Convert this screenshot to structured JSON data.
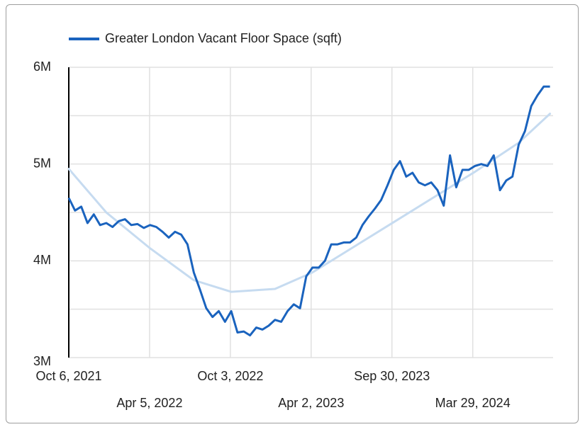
{
  "chart_data": {
    "type": "line",
    "x": [
      "2021-10-06",
      "2021-10-20",
      "2021-11-03",
      "2021-11-17",
      "2021-12-01",
      "2021-12-15",
      "2021-12-29",
      "2022-01-12",
      "2022-01-26",
      "2022-02-09",
      "2022-02-23",
      "2022-03-09",
      "2022-03-23",
      "2022-04-06",
      "2022-04-20",
      "2022-05-04",
      "2022-05-18",
      "2022-06-01",
      "2022-06-15",
      "2022-06-29",
      "2022-07-13",
      "2022-07-27",
      "2022-08-10",
      "2022-08-24",
      "2022-09-07",
      "2022-09-21",
      "2022-10-05",
      "2022-10-19",
      "2022-11-02",
      "2022-11-16",
      "2022-11-30",
      "2022-12-14",
      "2022-12-28",
      "2023-01-11",
      "2023-01-25",
      "2023-02-08",
      "2023-02-22",
      "2023-03-08",
      "2023-03-22",
      "2023-04-05",
      "2023-04-19",
      "2023-05-03",
      "2023-05-17",
      "2023-05-31",
      "2023-06-14",
      "2023-06-28",
      "2023-07-12",
      "2023-07-26",
      "2023-08-09",
      "2023-08-23",
      "2023-09-06",
      "2023-09-20",
      "2023-10-04",
      "2023-10-18",
      "2023-11-01",
      "2023-11-15",
      "2023-11-29",
      "2023-12-13",
      "2023-12-27",
      "2024-01-10",
      "2024-01-24",
      "2024-02-07",
      "2024-02-21",
      "2024-03-06",
      "2024-03-20",
      "2024-04-03",
      "2024-04-17",
      "2024-05-01",
      "2024-05-15",
      "2024-05-29",
      "2024-06-12",
      "2024-06-26",
      "2024-07-10",
      "2024-07-24",
      "2024-08-07",
      "2024-08-21",
      "2024-09-04",
      "2024-09-18"
    ],
    "series": [
      {
        "name": "Greater London Vacant Floor Space (sqft)",
        "color": "#1a63be",
        "values": [
          4650000,
          4520000,
          4560000,
          4390000,
          4480000,
          4370000,
          4390000,
          4350000,
          4410000,
          4430000,
          4370000,
          4380000,
          4340000,
          4370000,
          4350000,
          4300000,
          4240000,
          4300000,
          4270000,
          4170000,
          3880000,
          3700000,
          3510000,
          3420000,
          3480000,
          3370000,
          3480000,
          3260000,
          3270000,
          3230000,
          3310000,
          3290000,
          3330000,
          3390000,
          3370000,
          3480000,
          3550000,
          3510000,
          3840000,
          3930000,
          3930000,
          4000000,
          4170000,
          4170000,
          4190000,
          4190000,
          4240000,
          4370000,
          4460000,
          4540000,
          4630000,
          4780000,
          4940000,
          5030000,
          4870000,
          4910000,
          4810000,
          4780000,
          4810000,
          4730000,
          4570000,
          5090000,
          4760000,
          4940000,
          4940000,
          4980000,
          5000000,
          4980000,
          5090000,
          4730000,
          4830000,
          4870000,
          5200000,
          5340000,
          5600000,
          5710000,
          5800000,
          5800000
        ]
      }
    ],
    "trendline": {
      "color": "#c6dbf0",
      "x": [
        "2021-10-06",
        "2021-12-29",
        "2022-04-06",
        "2022-07-13",
        "2022-10-05",
        "2023-01-11",
        "2023-04-05",
        "2023-07-12",
        "2023-10-04",
        "2024-01-10",
        "2024-04-03",
        "2024-07-10",
        "2024-09-18"
      ],
      "values": [
        4950000,
        4500000,
        4130000,
        3800000,
        3680000,
        3710000,
        3880000,
        4160000,
        4400000,
        4680000,
        4920000,
        5220000,
        5520000
      ]
    },
    "xlim": [
      "2021-10-06",
      "2024-09-25"
    ],
    "xticks": [
      {
        "value": "2021-10-06",
        "label": "Oct 6, 2021"
      },
      {
        "value": "2022-04-05",
        "label": "Apr 5, 2022"
      },
      {
        "value": "2022-10-03",
        "label": "Oct 3, 2022"
      },
      {
        "value": "2023-04-02",
        "label": "Apr 2, 2023"
      },
      {
        "value": "2023-09-30",
        "label": "Sep 30, 2023"
      },
      {
        "value": "2024-03-29",
        "label": "Mar 29, 2024"
      }
    ],
    "ylim": [
      3000000,
      6000000
    ],
    "yticks": [
      {
        "value": 3000000,
        "label": "3M"
      },
      {
        "value": 4000000,
        "label": "4M"
      },
      {
        "value": 5000000,
        "label": "5M"
      },
      {
        "value": 6000000,
        "label": "6M"
      }
    ],
    "y_minor_ticks": [
      3500000,
      4500000,
      5500000
    ],
    "grid": true,
    "legend": "top"
  }
}
